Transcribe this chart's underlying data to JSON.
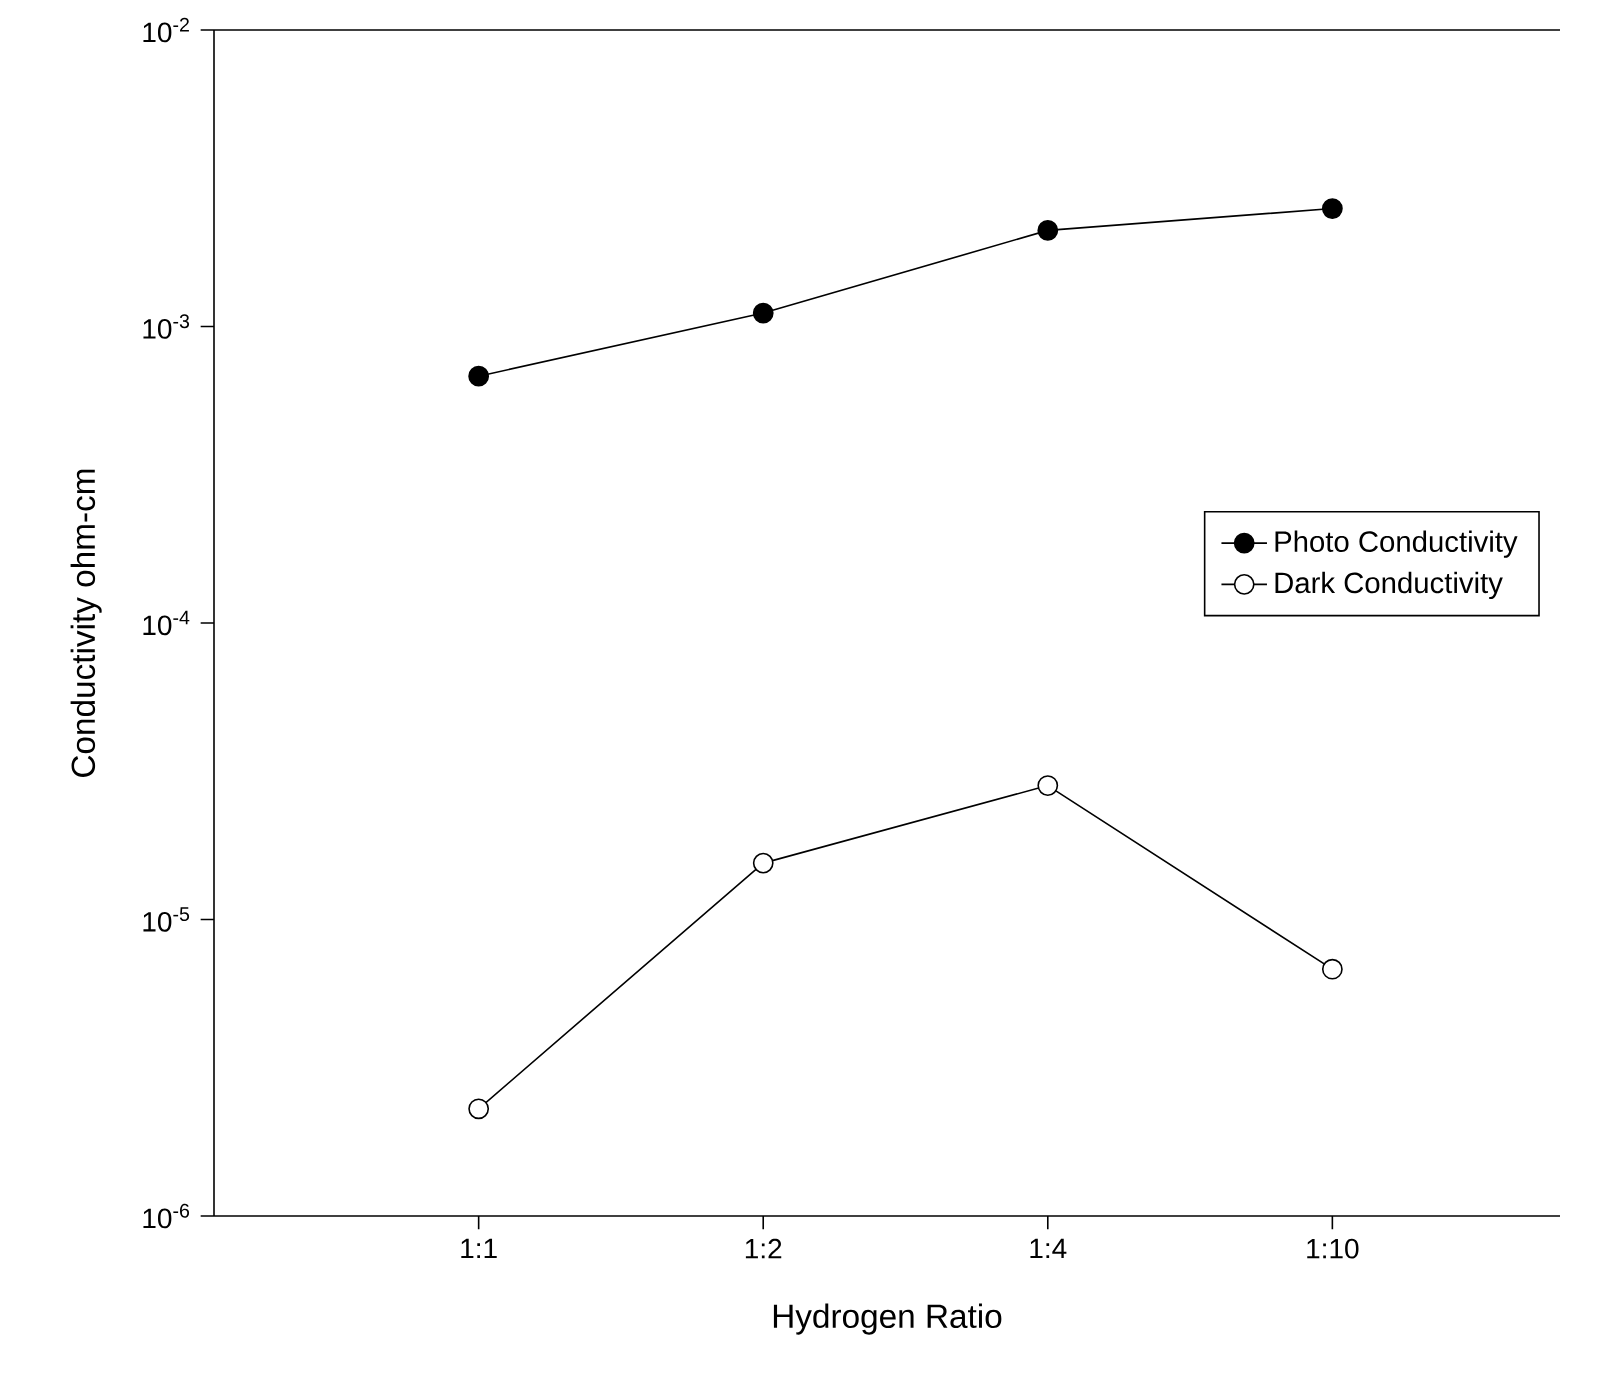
{
  "chart_data": {
    "type": "line",
    "xlabel": "Hydrogen Ratio",
    "ylabel": "Conductivity ohm-cm",
    "categories": [
      "1:1",
      "1:2",
      "1:4",
      "1:10"
    ],
    "series": [
      {
        "name": "Photo Conductivity",
        "color": "#000000",
        "values": [
          0.00068,
          0.00111,
          0.00211,
          0.0025
        ]
      },
      {
        "name": "Dark Conductivity",
        "color": "#000000",
        "values": [
          2.3e-06,
          1.55e-05,
          2.83e-05,
          6.8e-06
        ]
      }
    ],
    "log": "y",
    "ylim": [
      1e-06,
      0.01
    ],
    "yticks": [
      {
        "value": 1e-06,
        "label": "10$^{-6}$"
      },
      {
        "value": 1e-05,
        "label": "10$^{-5}$"
      },
      {
        "value": 0.0001,
        "label": "10$^{-4}$"
      },
      {
        "value": 0.001,
        "label": "10$^{-3}$"
      },
      {
        "value": 0.01,
        "label": "10$^{-2}$"
      }
    ],
    "grid": false,
    "legend": "right",
    "marker": "circle",
    "line_style": "solid"
  }
}
